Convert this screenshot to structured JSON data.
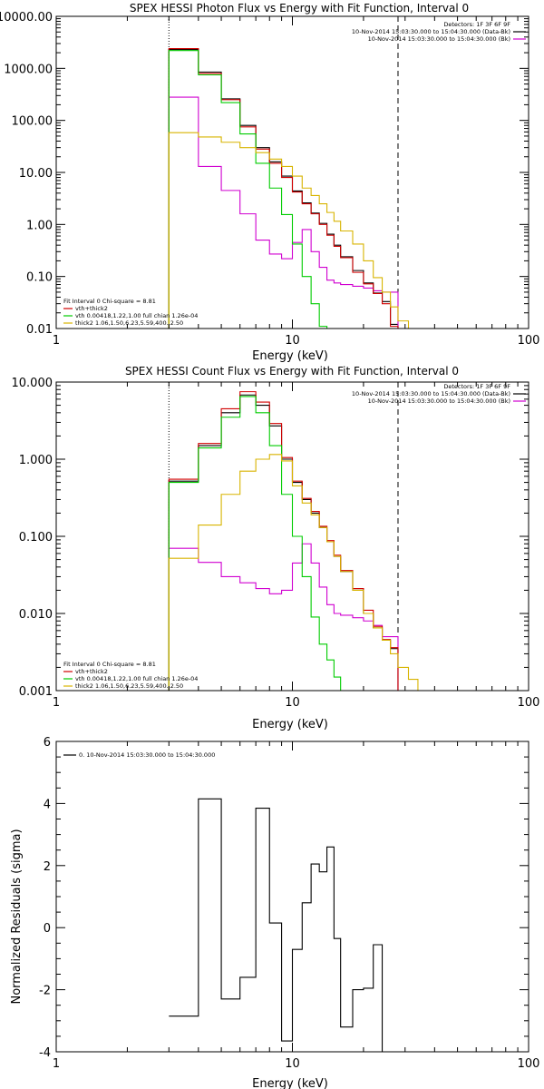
{
  "chart_data": [
    {
      "type": "line",
      "title": "SPEX HESSI Photon Flux vs Energy with Fit Function, Interval 0",
      "xlabel": "Energy (keV)",
      "ylabel": "",
      "xscale": "log",
      "yscale": "log",
      "xlim": [
        1,
        100
      ],
      "ylim": [
        0.01,
        10000
      ],
      "x_ticks": [
        "1",
        "10",
        "100"
      ],
      "y_ticks": [
        "0.01",
        "0.10",
        "1.00",
        "10.00",
        "100.00",
        "1000.00",
        "10000.00"
      ],
      "vlines": {
        "dotted": 3,
        "dashed": 28
      },
      "legend_topright": {
        "header": "Detectors: 1F 3F 6F 9F",
        "entries": [
          {
            "text": "10-Nov-2014 15:03:30.000 to 15:04:30.000 (Data-Bk)",
            "color": "#000000"
          },
          {
            "text": "10-Nov-2014 15:03:30.000 to 15:04:30.000 (Bk)",
            "color": "#d000d0"
          }
        ]
      },
      "legend_bottomleft": {
        "header": "Fit Interval 0   Chi-square = 8.81",
        "entries": [
          {
            "text": "vth+thick2",
            "color": "#d00000"
          },
          {
            "text": "vth 0.00418,1.22,1.00  full chian 1.26e-04",
            "color": "#00cc00"
          },
          {
            "text": "thick2 1.06,1.50,6.23,5.59,400.,2.50",
            "color": "#d8b400"
          }
        ]
      },
      "edges": [
        3.0,
        4.0,
        5.0,
        6.0,
        7.0,
        8.0,
        9.0,
        10.0,
        11.0,
        12.0,
        13.0,
        14.0,
        15.0,
        16.0,
        18.0,
        20.0,
        22.0,
        24.0,
        26.0,
        28.0,
        31.0,
        34.0,
        37.0
      ],
      "series": [
        {
          "name": "Data-Bk",
          "color": "#000000",
          "values": [
            2300,
            850,
            260,
            80,
            30,
            16,
            8.5,
            4.4,
            2.6,
            1.65,
            1.05,
            0.65,
            0.4,
            0.24,
            0.13,
            0.075,
            0.048,
            0.033,
            0.012,
            null,
            null,
            null
          ]
        },
        {
          "name": "Bk",
          "color": "#d000d0",
          "values": [
            280,
            13,
            4.5,
            1.6,
            0.5,
            0.27,
            0.22,
            0.45,
            0.8,
            0.3,
            0.15,
            0.085,
            0.075,
            0.07,
            0.065,
            0.06,
            0.053,
            0.05,
            0.05,
            null,
            null,
            null
          ]
        },
        {
          "name": "vth+thick2",
          "color": "#d00000",
          "values": [
            2400,
            800,
            250,
            75,
            28,
            15,
            8.0,
            4.2,
            2.5,
            1.6,
            1.0,
            0.62,
            0.38,
            0.23,
            0.12,
            0.072,
            0.047,
            0.03,
            0.011,
            null,
            null,
            null
          ]
        },
        {
          "name": "vth",
          "color": "#00cc00",
          "values": [
            2200,
            750,
            220,
            55,
            15,
            5.0,
            1.55,
            0.42,
            0.1,
            0.03,
            0.011,
            0.006,
            null,
            null,
            null,
            null,
            null,
            null,
            null,
            null,
            null,
            null
          ]
        },
        {
          "name": "thick2",
          "color": "#d8b400",
          "values": [
            58,
            48,
            38,
            30,
            24,
            18,
            13,
            8.5,
            5.0,
            3.6,
            2.5,
            1.7,
            1.15,
            0.75,
            0.42,
            0.2,
            0.095,
            0.05,
            0.026,
            0.014,
            0.009,
            null
          ]
        }
      ]
    },
    {
      "type": "line",
      "title": "SPEX HESSI Count Flux vs Energy with Fit Function, Interval 0",
      "xlabel": "Energy (keV)",
      "ylabel": "",
      "xscale": "log",
      "yscale": "log",
      "xlim": [
        1,
        100
      ],
      "ylim": [
        0.001,
        10
      ],
      "x_ticks": [
        "1",
        "10",
        "100"
      ],
      "y_ticks": [
        "0.001",
        "0.010",
        "0.100",
        "1.000",
        "10.000"
      ],
      "vlines": {
        "dotted": 3,
        "dashed": 28
      },
      "legend_topright": {
        "header": "Detectors: 1F 3F 6F 9F",
        "entries": [
          {
            "text": "10-Nov-2014 15:03:30.000 to 15:04:30.000 (Data-Bk)",
            "color": "#000000"
          },
          {
            "text": "10-Nov-2014 15:03:30.000 to 15:04:30.000 (Bk)",
            "color": "#d000d0"
          }
        ]
      },
      "legend_bottomleft": {
        "header": "Fit Interval 0   Chi-square = 8.81",
        "entries": [
          {
            "text": "vth+thick2",
            "color": "#d00000"
          },
          {
            "text": "vth 0.00418,1.22,1.00  full chian 1.26e-04",
            "color": "#00cc00"
          },
          {
            "text": "thick2 1.06,1.50,6.23,5.59,400.,2.50",
            "color": "#d8b400"
          }
        ]
      },
      "edges": [
        3.0,
        4.0,
        5.0,
        6.0,
        7.0,
        8.0,
        9.0,
        10.0,
        11.0,
        12.0,
        13.0,
        14.0,
        15.0,
        16.0,
        18.0,
        20.0,
        22.0,
        24.0,
        26.0,
        28.0,
        31.0,
        34.0,
        37.0
      ],
      "series": [
        {
          "name": "Data-Bk",
          "color": "#000000",
          "values": [
            0.52,
            1.5,
            4.0,
            6.8,
            5.0,
            2.7,
            1.0,
            0.5,
            0.3,
            0.2,
            0.13,
            0.085,
            0.055,
            0.035,
            0.02,
            0.01,
            0.0065,
            0.0045,
            0.0035,
            null,
            null,
            null
          ]
        },
        {
          "name": "Bk",
          "color": "#d000d0",
          "values": [
            0.07,
            0.046,
            0.03,
            0.025,
            0.021,
            0.018,
            0.02,
            0.045,
            0.08,
            0.045,
            0.022,
            0.013,
            0.01,
            0.0095,
            0.0088,
            0.008,
            0.007,
            0.005,
            0.005,
            null,
            null,
            null
          ]
        },
        {
          "name": "vth+thick2",
          "color": "#d00000",
          "values": [
            0.55,
            1.6,
            4.5,
            7.5,
            5.5,
            2.9,
            1.05,
            0.52,
            0.31,
            0.21,
            0.135,
            0.088,
            0.057,
            0.036,
            0.021,
            0.011,
            0.0068,
            0.0046,
            0.0036,
            null,
            null,
            null
          ]
        },
        {
          "name": "vth",
          "color": "#00cc00",
          "values": [
            0.5,
            1.4,
            3.5,
            6.5,
            4.0,
            1.5,
            0.35,
            0.1,
            0.03,
            0.009,
            0.004,
            0.0025,
            0.0015,
            null,
            null,
            null,
            null,
            null,
            null,
            null,
            null,
            null
          ]
        },
        {
          "name": "thick2",
          "color": "#d8b400",
          "values": [
            0.052,
            0.14,
            0.35,
            0.7,
            1.0,
            1.15,
            0.95,
            0.45,
            0.27,
            0.19,
            0.13,
            0.085,
            0.055,
            0.035,
            0.02,
            0.01,
            0.0065,
            0.0045,
            0.003,
            0.002,
            0.0014,
            0.001
          ]
        }
      ]
    },
    {
      "type": "line",
      "title": "",
      "xlabel": "Energy (keV)",
      "ylabel": "Normalized Residuals (sigma)",
      "xscale": "log",
      "yscale": "linear",
      "xlim": [
        1,
        100
      ],
      "ylim": [
        -4,
        6
      ],
      "x_ticks": [
        "1",
        "10",
        "100"
      ],
      "y_ticks": [
        "-4",
        "-2",
        "0",
        "2",
        "4",
        "6"
      ],
      "legend": {
        "entries": [
          {
            "text": "0. 10-Nov-2014 15:03:30.000 to 15:04:30.000",
            "color": "#000000"
          }
        ]
      },
      "edges": [
        3.0,
        4.0,
        5.0,
        6.0,
        7.0,
        8.0,
        9.0,
        10.0,
        11.0,
        12.0,
        13.0,
        14.0,
        15.0,
        16.0,
        18.0,
        20.0,
        22.0,
        24.0,
        26.0,
        28.0
      ],
      "series": [
        {
          "name": "0. 10-Nov-2014 15:03:30.000 to 15:04:30.000",
          "color": "#000000",
          "values": [
            -2.85,
            4.15,
            -2.3,
            -1.6,
            3.85,
            0.15,
            -3.65,
            -0.7,
            0.8,
            2.05,
            1.8,
            2.6,
            -0.35,
            -3.2,
            -2.0,
            -1.95,
            -0.55,
            -4.0,
            -4.0
          ]
        }
      ]
    }
  ]
}
